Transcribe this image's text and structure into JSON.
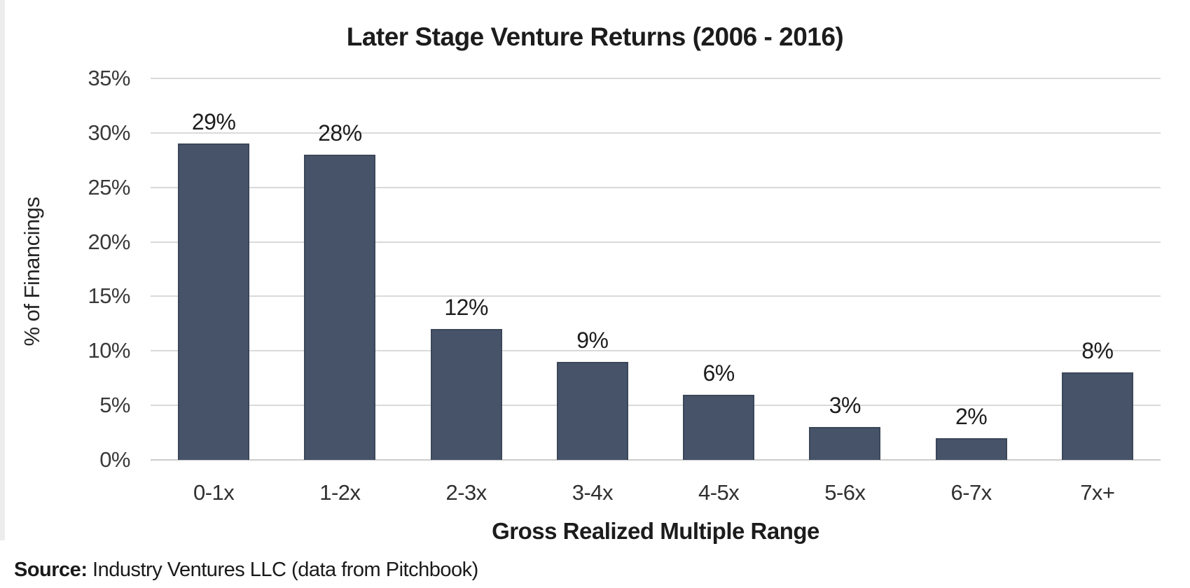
{
  "chart_data": {
    "type": "bar",
    "title": "Later Stage Venture Returns (2006 - 2016)",
    "xlabel": "Gross Realized Multiple Range",
    "ylabel": "% of Financings",
    "categories": [
      "0-1x",
      "1-2x",
      "2-3x",
      "3-4x",
      "4-5x",
      "5-6x",
      "6-7x",
      "7x+"
    ],
    "values": [
      29,
      28,
      12,
      9,
      6,
      3,
      2,
      8
    ],
    "data_labels": [
      "29%",
      "28%",
      "12%",
      "9%",
      "6%",
      "3%",
      "2%",
      "8%"
    ],
    "y_ticks": [
      "35%",
      "30%",
      "25%",
      "20%",
      "15%",
      "10%",
      "5%",
      "0%"
    ],
    "ylim": [
      0,
      35
    ],
    "grid": "horizontal",
    "legend_position": "none",
    "bar_color": "#475369",
    "gridline_color": "#d9d9d9"
  },
  "source": {
    "label": "Source:",
    "text": " Industry Ventures LLC (data from Pitchbook)"
  }
}
